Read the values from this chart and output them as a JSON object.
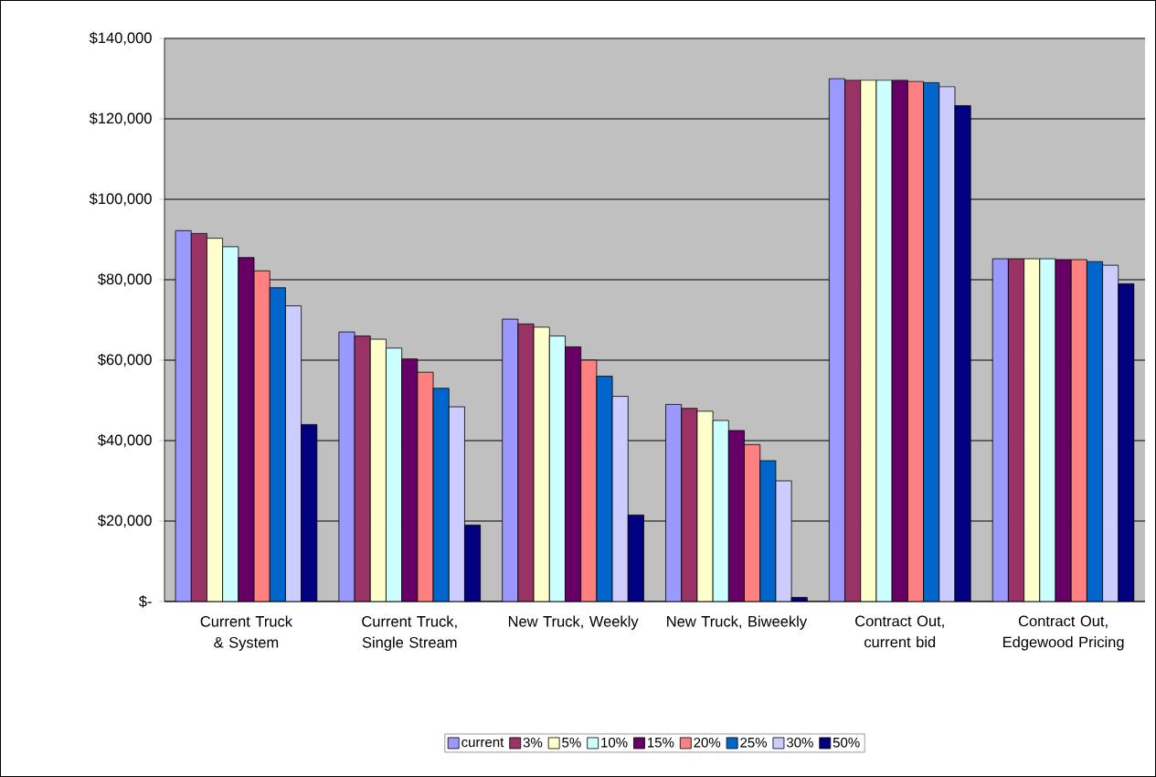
{
  "chart_data": {
    "type": "bar",
    "categories": [
      "Current Truck & System",
      "Current Truck, Single Stream",
      "New Truck, Weekly",
      "New Truck, Biweekly",
      "Contract Out, current bid",
      "Contract Out, Edgewood Pricing"
    ],
    "series": [
      {
        "name": "current",
        "color": "#9999ff",
        "values": [
          92200,
          67000,
          70200,
          49000,
          130000,
          85200
        ]
      },
      {
        "name": "3%",
        "color": "#993366",
        "values": [
          91500,
          66000,
          69000,
          48000,
          129600,
          85200
        ]
      },
      {
        "name": "5%",
        "color": "#ffffcc",
        "values": [
          90300,
          65200,
          68200,
          47300,
          129600,
          85200
        ]
      },
      {
        "name": "10%",
        "color": "#ccffff",
        "values": [
          88200,
          63000,
          66000,
          45000,
          129600,
          85200
        ]
      },
      {
        "name": "15%",
        "color": "#660066",
        "values": [
          85500,
          60300,
          63300,
          42500,
          129600,
          85000
        ]
      },
      {
        "name": "20%",
        "color": "#ff8080",
        "values": [
          82200,
          57000,
          60000,
          39000,
          129300,
          85000
        ]
      },
      {
        "name": "25%",
        "color": "#0066cc",
        "values": [
          78000,
          53000,
          56000,
          35000,
          129000,
          84500
        ]
      },
      {
        "name": "30%",
        "color": "#ccccff",
        "values": [
          73500,
          48400,
          51000,
          30000,
          128000,
          83600
        ]
      },
      {
        "name": "50%",
        "color": "#000080",
        "values": [
          44000,
          19000,
          21500,
          1000,
          123300,
          79000
        ]
      }
    ],
    "ylim": [
      0,
      140000
    ],
    "yticks": [
      {
        "value": 0,
        "label": "$-"
      },
      {
        "value": 20000,
        "label": "$20,000"
      },
      {
        "value": 40000,
        "label": "$40,000"
      },
      {
        "value": 60000,
        "label": "$60,000"
      },
      {
        "value": 80000,
        "label": "$80,000"
      },
      {
        "value": 100000,
        "label": "$100,000"
      },
      {
        "value": 120000,
        "label": "$120,000"
      },
      {
        "value": 140000,
        "label": "$140,000"
      }
    ],
    "grid": "y",
    "legend": "bottom"
  }
}
